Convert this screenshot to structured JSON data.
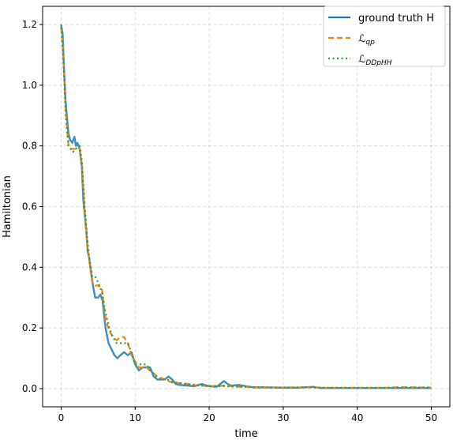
{
  "chart_data": {
    "type": "line",
    "title": "",
    "xlabel": "time",
    "ylabel": "Hamiltonian",
    "xlim": [
      -2.5,
      52.5
    ],
    "ylim": [
      -0.06,
      1.26
    ],
    "xticks": [
      0,
      10,
      20,
      30,
      40,
      50
    ],
    "yticks": [
      0.0,
      0.2,
      0.4,
      0.6,
      0.8,
      1.0,
      1.2
    ],
    "grid": true,
    "legend": "top-right",
    "series": [
      {
        "name": "ground truth H",
        "color": "#1f77b4",
        "style": "solid",
        "points": [
          [
            0,
            1.2
          ],
          [
            0.2,
            1.17
          ],
          [
            0.4,
            1.05
          ],
          [
            0.6,
            0.95
          ],
          [
            0.8,
            0.89
          ],
          [
            1.0,
            0.84
          ],
          [
            1.2,
            0.82
          ],
          [
            1.5,
            0.81
          ],
          [
            1.8,
            0.83
          ],
          [
            2.0,
            0.8
          ],
          [
            2.2,
            0.81
          ],
          [
            2.5,
            0.79
          ],
          [
            2.8,
            0.73
          ],
          [
            3.0,
            0.62
          ],
          [
            3.2,
            0.57
          ],
          [
            3.4,
            0.52
          ],
          [
            3.6,
            0.45
          ],
          [
            3.8,
            0.43
          ],
          [
            4.0,
            0.39
          ],
          [
            4.3,
            0.34
          ],
          [
            4.6,
            0.3
          ],
          [
            5.0,
            0.3
          ],
          [
            5.3,
            0.31
          ],
          [
            5.6,
            0.29
          ],
          [
            6.0,
            0.2
          ],
          [
            6.4,
            0.15
          ],
          [
            6.8,
            0.13
          ],
          [
            7.2,
            0.11
          ],
          [
            7.6,
            0.1
          ],
          [
            8.0,
            0.11
          ],
          [
            8.5,
            0.12
          ],
          [
            9.0,
            0.11
          ],
          [
            9.5,
            0.12
          ],
          [
            10.0,
            0.08
          ],
          [
            10.5,
            0.06
          ],
          [
            11.0,
            0.07
          ],
          [
            11.5,
            0.07
          ],
          [
            12.0,
            0.07
          ],
          [
            12.5,
            0.04
          ],
          [
            13.0,
            0.03
          ],
          [
            13.5,
            0.03
          ],
          [
            14.0,
            0.03
          ],
          [
            14.5,
            0.04
          ],
          [
            15.0,
            0.03
          ],
          [
            15.5,
            0.015
          ],
          [
            16.0,
            0.012
          ],
          [
            17.0,
            0.01
          ],
          [
            18.0,
            0.008
          ],
          [
            19.0,
            0.015
          ],
          [
            20.0,
            0.008
          ],
          [
            21.0,
            0.006
          ],
          [
            22.0,
            0.025
          ],
          [
            22.5,
            0.015
          ],
          [
            23.0,
            0.01
          ],
          [
            24.0,
            0.012
          ],
          [
            25.0,
            0.008
          ],
          [
            26.0,
            0.004
          ],
          [
            28.0,
            0.004
          ],
          [
            30.0,
            0.003
          ],
          [
            32.0,
            0.003
          ],
          [
            34.0,
            0.006
          ],
          [
            35.0,
            0.002
          ],
          [
            38.0,
            0.002
          ],
          [
            40.0,
            0.002
          ],
          [
            42.0,
            0.002
          ],
          [
            44.0,
            0.002
          ],
          [
            46.0,
            0.002
          ],
          [
            48.0,
            0.002
          ],
          [
            50.0,
            0.002
          ]
        ]
      },
      {
        "name": "ℒ_qp",
        "color": "#ff7f0e",
        "style": "dashed",
        "points": [
          [
            0,
            1.19
          ],
          [
            0.2,
            1.14
          ],
          [
            0.4,
            1.04
          ],
          [
            0.6,
            0.92
          ],
          [
            0.8,
            0.86
          ],
          [
            1.0,
            0.8
          ],
          [
            1.3,
            0.79
          ],
          [
            1.6,
            0.79
          ],
          [
            2.0,
            0.79
          ],
          [
            2.5,
            0.79
          ],
          [
            2.8,
            0.74
          ],
          [
            3.0,
            0.66
          ],
          [
            3.2,
            0.58
          ],
          [
            3.5,
            0.48
          ],
          [
            3.8,
            0.42
          ],
          [
            4.2,
            0.35
          ],
          [
            4.6,
            0.34
          ],
          [
            5.0,
            0.34
          ],
          [
            5.5,
            0.33
          ],
          [
            6.0,
            0.23
          ],
          [
            6.5,
            0.19
          ],
          [
            7.0,
            0.17
          ],
          [
            7.5,
            0.16
          ],
          [
            8.0,
            0.17
          ],
          [
            8.5,
            0.17
          ],
          [
            9.0,
            0.15
          ],
          [
            9.5,
            0.11
          ],
          [
            10.0,
            0.09
          ],
          [
            10.5,
            0.07
          ],
          [
            11.0,
            0.07
          ],
          [
            11.5,
            0.07
          ],
          [
            12.0,
            0.06
          ],
          [
            12.5,
            0.05
          ],
          [
            13.0,
            0.04
          ],
          [
            13.5,
            0.035
          ],
          [
            14.0,
            0.03
          ],
          [
            14.5,
            0.025
          ],
          [
            15.0,
            0.02
          ],
          [
            16.0,
            0.018
          ],
          [
            17.0,
            0.016
          ],
          [
            18.0,
            0.012
          ],
          [
            20.0,
            0.008
          ],
          [
            22.0,
            0.01
          ],
          [
            24.0,
            0.006
          ],
          [
            26.0,
            0.005
          ],
          [
            28.0,
            0.004
          ],
          [
            30.0,
            0.004
          ],
          [
            32.0,
            0.004
          ],
          [
            34.0,
            0.004
          ],
          [
            36.0,
            0.003
          ],
          [
            40.0,
            0.003
          ],
          [
            44.0,
            0.003
          ],
          [
            46.0,
            0.005
          ],
          [
            48.0,
            0.004
          ],
          [
            50.0,
            0.004
          ]
        ]
      },
      {
        "name": "ℒ_DDpHH",
        "color": "#2ca02c",
        "style": "dotted",
        "points": [
          [
            0,
            1.19
          ],
          [
            0.2,
            1.13
          ],
          [
            0.4,
            1.03
          ],
          [
            0.6,
            0.91
          ],
          [
            0.8,
            0.85
          ],
          [
            1.0,
            0.8
          ],
          [
            1.3,
            0.79
          ],
          [
            1.6,
            0.78
          ],
          [
            2.0,
            0.79
          ],
          [
            2.5,
            0.8
          ],
          [
            2.8,
            0.75
          ],
          [
            3.0,
            0.67
          ],
          [
            3.2,
            0.6
          ],
          [
            3.5,
            0.5
          ],
          [
            3.8,
            0.43
          ],
          [
            4.2,
            0.37
          ],
          [
            4.6,
            0.37
          ],
          [
            5.0,
            0.35
          ],
          [
            5.5,
            0.32
          ],
          [
            6.0,
            0.25
          ],
          [
            6.5,
            0.2
          ],
          [
            7.0,
            0.17
          ],
          [
            7.5,
            0.15
          ],
          [
            8.0,
            0.15
          ],
          [
            8.5,
            0.15
          ],
          [
            9.0,
            0.15
          ],
          [
            9.5,
            0.12
          ],
          [
            10.0,
            0.08
          ],
          [
            10.5,
            0.08
          ],
          [
            11.0,
            0.08
          ],
          [
            11.5,
            0.08
          ],
          [
            12.0,
            0.06
          ],
          [
            12.5,
            0.05
          ],
          [
            13.0,
            0.035
          ],
          [
            13.5,
            0.03
          ],
          [
            14.0,
            0.03
          ],
          [
            14.5,
            0.028
          ],
          [
            15.0,
            0.022
          ],
          [
            16.0,
            0.018
          ],
          [
            17.0,
            0.015
          ],
          [
            18.0,
            0.012
          ],
          [
            20.0,
            0.008
          ],
          [
            22.0,
            0.008
          ],
          [
            24.0,
            0.006
          ],
          [
            26.0,
            0.005
          ],
          [
            28.0,
            0.004
          ],
          [
            30.0,
            0.004
          ],
          [
            32.0,
            0.004
          ],
          [
            34.0,
            0.004
          ],
          [
            36.0,
            0.003
          ],
          [
            40.0,
            0.003
          ],
          [
            44.0,
            0.003
          ],
          [
            46.0,
            0.004
          ],
          [
            48.0,
            0.004
          ],
          [
            50.0,
            0.004
          ]
        ]
      }
    ]
  }
}
